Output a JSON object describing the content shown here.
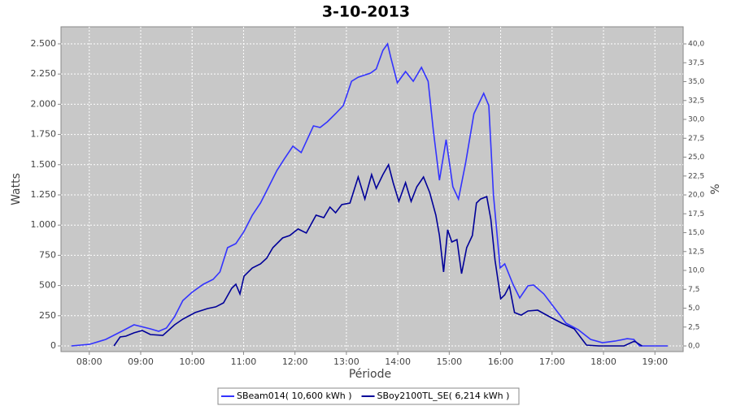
{
  "chart_data": {
    "type": "line",
    "title": "3-10-2013",
    "x_label": "Période",
    "y_label": "Watts",
    "y2_label": "%",
    "xlim": [
      7.45,
      19.55
    ],
    "ylim": [
      -47,
      2641
    ],
    "y2lim": [
      -0.75,
      42.26
    ],
    "grid": true,
    "legend": "bottom",
    "xticks": [
      {
        "value": 8,
        "label": "08:00"
      },
      {
        "value": 9,
        "label": "09:00"
      },
      {
        "value": 10,
        "label": "10:00"
      },
      {
        "value": 11,
        "label": "11:00"
      },
      {
        "value": 12,
        "label": "12:00"
      },
      {
        "value": 13,
        "label": "13:00"
      },
      {
        "value": 14,
        "label": "14:00"
      },
      {
        "value": 15,
        "label": "15:00"
      },
      {
        "value": 16,
        "label": "16:00"
      },
      {
        "value": 17,
        "label": "17:00"
      },
      {
        "value": 18,
        "label": "18:00"
      },
      {
        "value": 19,
        "label": "19:00"
      }
    ],
    "yticks": [
      0,
      250,
      500,
      750,
      {
        "value": 1000,
        "label": "1.000"
      },
      {
        "value": 1250,
        "label": "1.250"
      },
      {
        "value": 1500,
        "label": "1.500"
      },
      {
        "value": 1750,
        "label": "1.750"
      },
      {
        "value": 2000,
        "label": "2.000"
      },
      {
        "value": 2250,
        "label": "2.250"
      },
      {
        "value": 2500,
        "label": "2.500"
      }
    ],
    "y2ticks": [
      {
        "value": 0,
        "label": "0,0"
      },
      {
        "value": 2.5,
        "label": "2,5"
      },
      {
        "value": 5,
        "label": "5,0"
      },
      {
        "value": 7.5,
        "label": "7,5"
      },
      {
        "value": 10,
        "label": "10,0"
      },
      {
        "value": 12.5,
        "label": "12,5"
      },
      {
        "value": 15,
        "label": "15,0"
      },
      {
        "value": 17.5,
        "label": "17,5"
      },
      {
        "value": 20,
        "label": "20,0"
      },
      {
        "value": 22.5,
        "label": "22,5"
      },
      {
        "value": 25,
        "label": "25,0"
      },
      {
        "value": 27.5,
        "label": "27,5"
      },
      {
        "value": 30,
        "label": "30,0"
      },
      {
        "value": 32.5,
        "label": "32,5"
      },
      {
        "value": 35,
        "label": "35,0"
      },
      {
        "value": 37.5,
        "label": "37,5"
      },
      {
        "value": 40,
        "label": "40,0"
      }
    ],
    "series": [
      {
        "name": "SBeam014( 10,600 kWh )",
        "color": "#3333ff",
        "x": [
          7.65,
          8.0,
          8.32,
          8.63,
          8.87,
          9.19,
          9.35,
          9.5,
          9.66,
          9.82,
          10.0,
          10.22,
          10.41,
          10.54,
          10.69,
          10.85,
          11.01,
          11.17,
          11.33,
          11.49,
          11.65,
          11.8,
          11.96,
          12.12,
          12.25,
          12.36,
          12.49,
          12.63,
          12.79,
          12.94,
          13.1,
          13.23,
          13.47,
          13.58,
          13.71,
          13.8,
          13.86,
          13.99,
          14.15,
          14.3,
          14.46,
          14.59,
          14.69,
          14.81,
          14.94,
          15.07,
          15.18,
          15.32,
          15.48,
          15.67,
          15.77,
          15.86,
          15.99,
          16.08,
          16.24,
          16.37,
          16.53,
          16.64,
          16.84,
          17.03,
          17.27,
          17.51,
          17.75,
          17.98,
          18.22,
          18.46,
          18.59,
          18.7,
          19.25
        ],
        "values": [
          0,
          13,
          54,
          121,
          175,
          141,
          121,
          148,
          242,
          376,
          444,
          511,
          551,
          612,
          813,
          847,
          948,
          1082,
          1183,
          1317,
          1452,
          1552,
          1653,
          1600,
          1720,
          1821,
          1808,
          1855,
          1922,
          1989,
          2190,
          2224,
          2258,
          2292,
          2446,
          2500,
          2392,
          2177,
          2271,
          2190,
          2305,
          2190,
          1788,
          1371,
          1707,
          1317,
          1216,
          1519,
          1922,
          2090,
          1989,
          1250,
          645,
          679,
          511,
          397,
          497,
          504,
          430,
          323,
          188,
          134,
          54,
          27,
          40,
          60,
          54,
          0,
          0
        ]
      },
      {
        "name": "SBoy2100TL_SE( 6,214 kWh )",
        "color": "#000099",
        "x": [
          8.48,
          8.6,
          8.71,
          8.87,
          9.03,
          9.19,
          9.43,
          9.66,
          9.82,
          10.06,
          10.3,
          10.46,
          10.61,
          10.77,
          10.85,
          10.93,
          11.01,
          11.17,
          11.33,
          11.45,
          11.57,
          11.76,
          11.9,
          12.06,
          12.22,
          12.41,
          12.56,
          12.68,
          12.79,
          12.91,
          13.07,
          13.23,
          13.36,
          13.49,
          13.58,
          13.71,
          13.82,
          13.91,
          14.02,
          14.15,
          14.26,
          14.37,
          14.5,
          14.62,
          14.74,
          14.81,
          14.89,
          14.97,
          15.05,
          15.15,
          15.24,
          15.34,
          15.45,
          15.53,
          15.61,
          15.73,
          15.81,
          15.89,
          16.0,
          16.08,
          16.17,
          16.27,
          16.4,
          16.53,
          16.72,
          16.95,
          17.19,
          17.43,
          17.67,
          17.91,
          18.4,
          18.6,
          18.75
        ],
        "values": [
          0,
          74,
          81,
          108,
          128,
          94,
          87,
          175,
          222,
          276,
          309,
          323,
          356,
          477,
          511,
          430,
          578,
          645,
          679,
          726,
          813,
          894,
          914,
          968,
          934,
          1082,
          1062,
          1149,
          1102,
          1169,
          1183,
          1398,
          1216,
          1418,
          1304,
          1418,
          1499,
          1351,
          1196,
          1351,
          1196,
          1317,
          1398,
          1270,
          1082,
          914,
          612,
          961,
          860,
          880,
          598,
          813,
          914,
          1183,
          1216,
          1236,
          1048,
          712,
          390,
          423,
          497,
          276,
          255,
          289,
          296,
          242,
          188,
          141,
          7,
          0,
          0,
          40,
          0
        ]
      }
    ]
  }
}
